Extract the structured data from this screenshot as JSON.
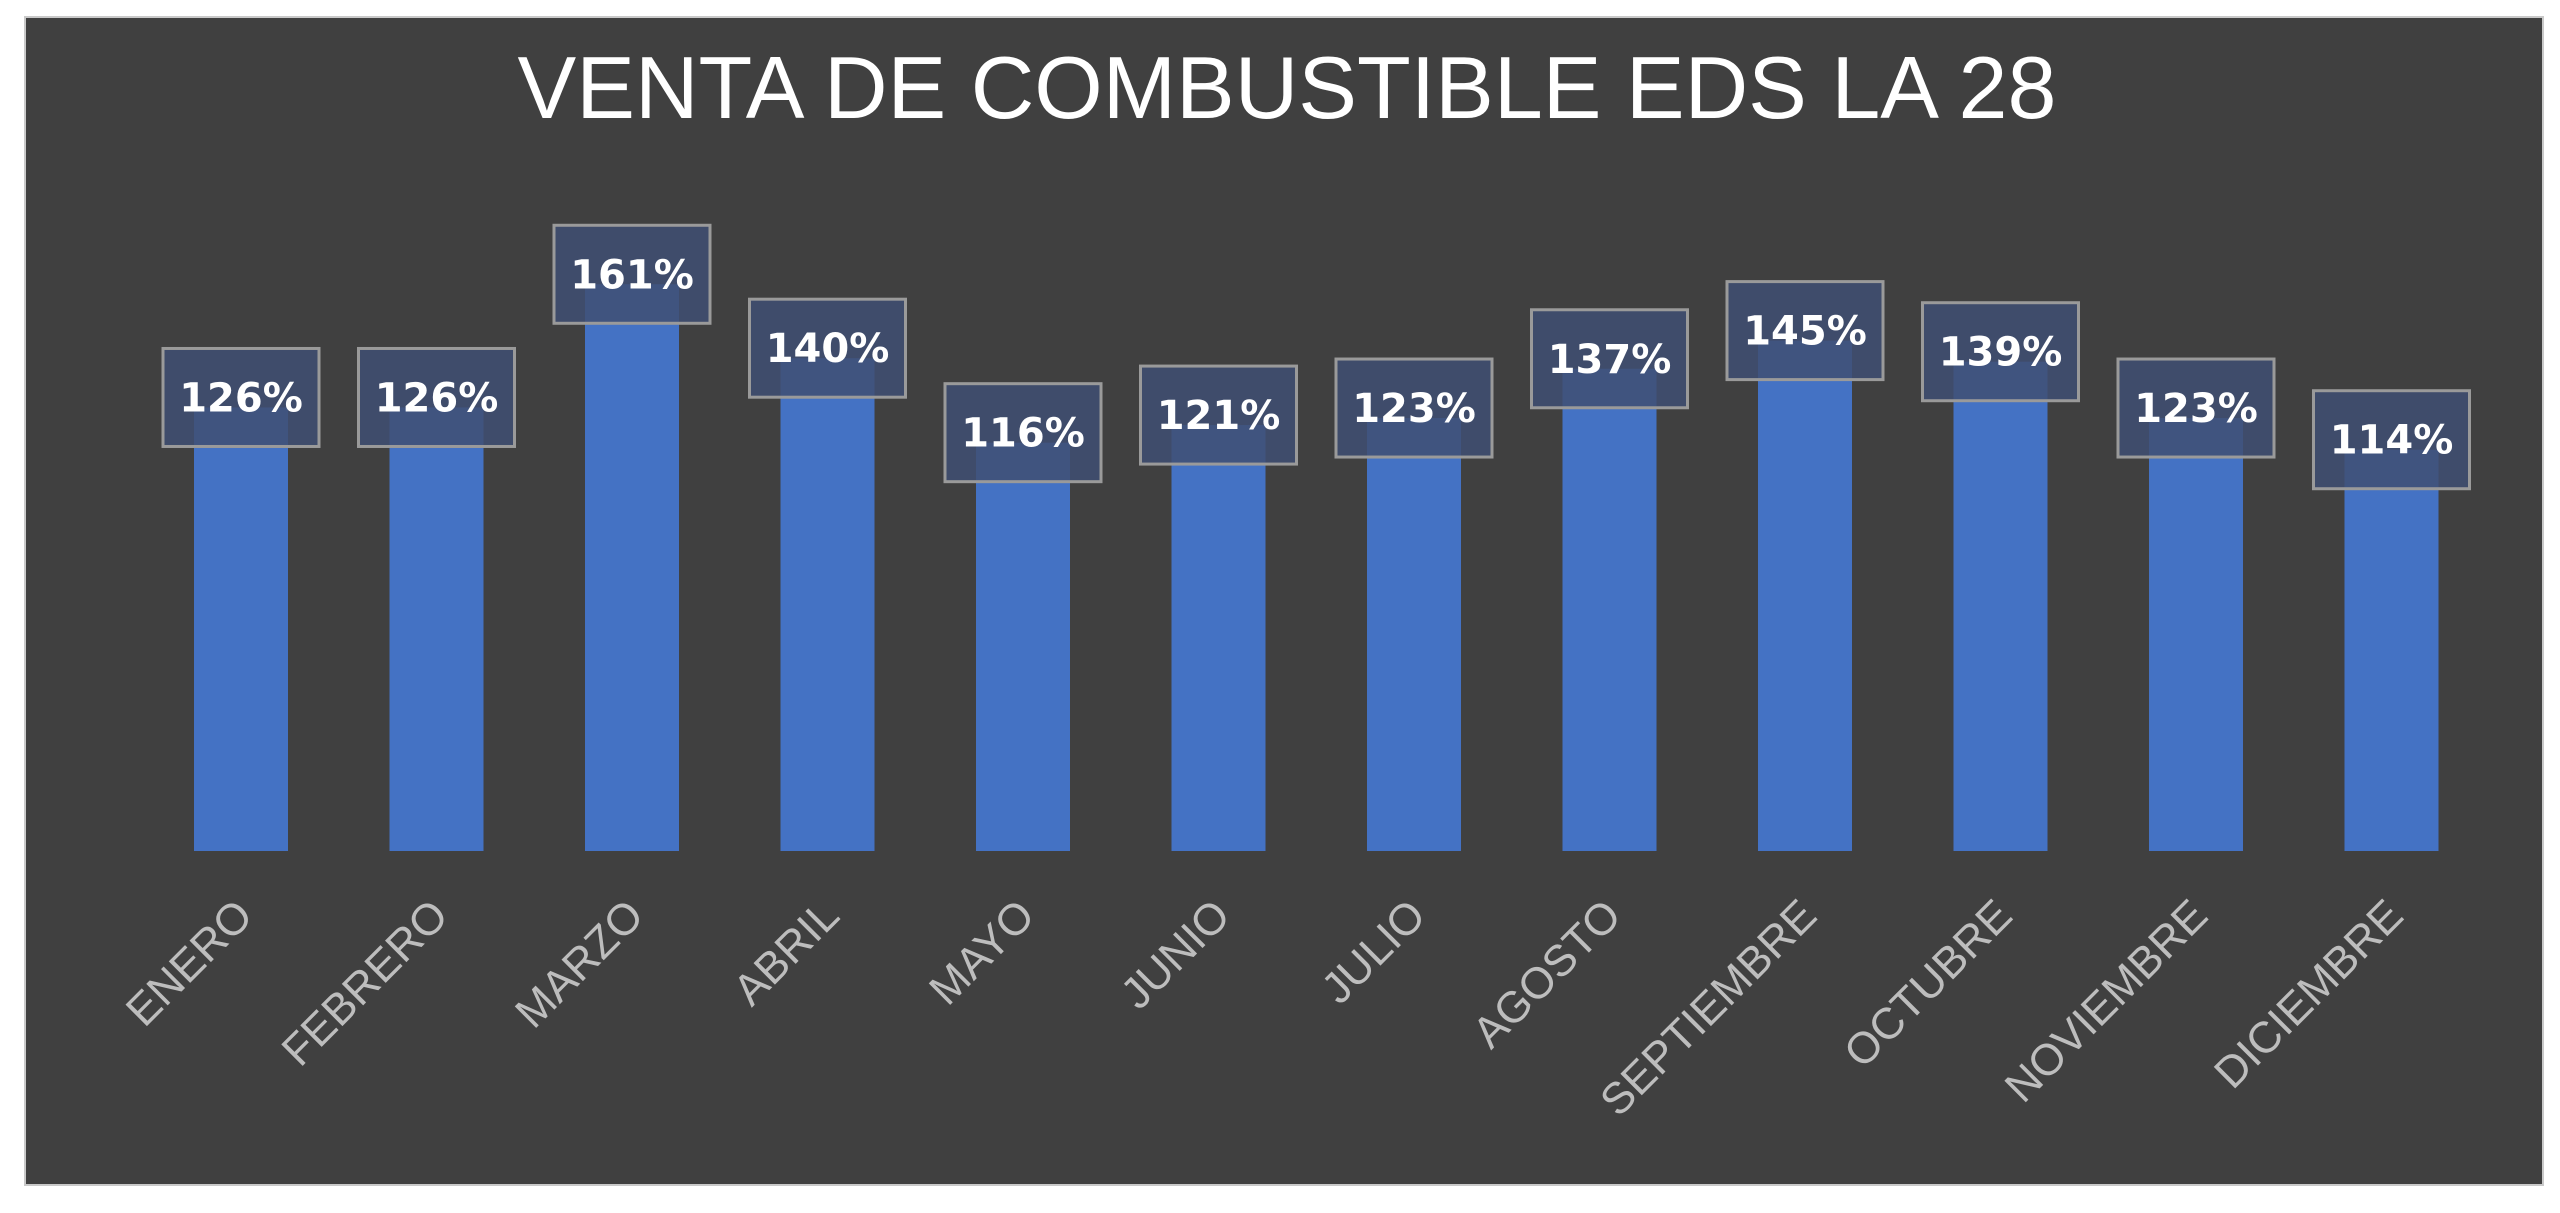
{
  "chart_data": {
    "type": "bar",
    "title": "VENTA DE COMBUSTIBLE EDS LA 28",
    "categories": [
      "ENERO",
      "FEBRERO",
      "MARZO",
      "ABRIL",
      "MAYO",
      "JUNIO",
      "JULIO",
      "AGOSTO",
      "SEPTIEMBRE",
      "OCTUBRE",
      "NOVIEMBRE",
      "DICIEMBRE"
    ],
    "values": [
      126,
      126,
      161,
      140,
      116,
      121,
      123,
      137,
      145,
      139,
      123,
      114
    ],
    "data_labels": [
      "126%",
      "126%",
      "161%",
      "140%",
      "116%",
      "121%",
      "123%",
      "137%",
      "145%",
      "139%",
      "123%",
      "114%"
    ],
    "unit": "%",
    "xlabel": "",
    "ylabel": "",
    "ylim": [
      0,
      180
    ],
    "grid": false,
    "legend": "none",
    "colors": {
      "background": "#404040",
      "bar": "#4472c4",
      "label_box_fill": "#3f4f73",
      "label_box_stroke": "#9a9a9a",
      "title": "#ffffff",
      "tick_label": "#bdbdbd"
    }
  }
}
